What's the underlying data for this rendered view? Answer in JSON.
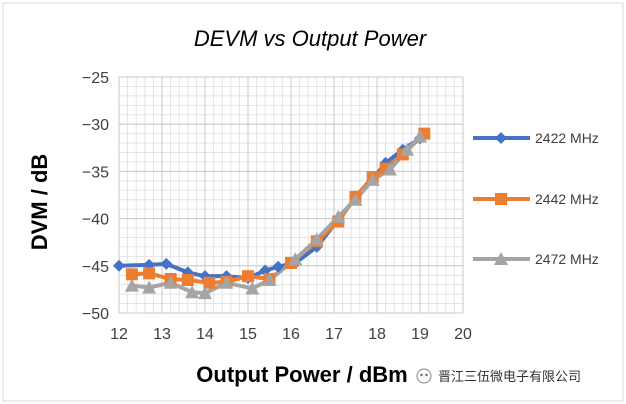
{
  "chart_data": {
    "type": "line",
    "title": "DEVM vs Output Power",
    "xlabel": "Output Power / dBm",
    "ylabel": "DVM / dB",
    "xlim": [
      12,
      20
    ],
    "ylim": [
      -50,
      -25
    ],
    "xticks": [
      12,
      13,
      14,
      15,
      16,
      17,
      18,
      19,
      20
    ],
    "yticks": [
      -25,
      -30,
      -35,
      -40,
      -45,
      -50
    ],
    "grid": true,
    "legend_position": "right",
    "series": [
      {
        "name": "2422 MHz",
        "color": "#4472C4",
        "marker": "diamond",
        "x": [
          12,
          12.7,
          13.1,
          13.6,
          14.0,
          14.5,
          15.0,
          15.4,
          15.7,
          16.1,
          16.6,
          17.1,
          17.5,
          17.9,
          18.2,
          18.6,
          19.0
        ],
        "y": [
          -45.0,
          -44.9,
          -44.8,
          -45.7,
          -46.1,
          -46.1,
          -46.3,
          -45.5,
          -45.1,
          -44.7,
          -43.0,
          -40.1,
          -37.8,
          -35.8,
          -34.1,
          -32.7,
          -31.5
        ]
      },
      {
        "name": "2442 MHz",
        "color": "#ED7D31",
        "marker": "square",
        "x": [
          12.3,
          12.7,
          13.2,
          13.6,
          14.1,
          14.5,
          15.0,
          15.5,
          16.0,
          16.6,
          17.1,
          17.5,
          17.9,
          18.2,
          18.6,
          19.1
        ],
        "y": [
          -45.9,
          -45.8,
          -46.4,
          -46.5,
          -46.8,
          -46.7,
          -46.1,
          -46.4,
          -44.7,
          -42.4,
          -40.3,
          -37.7,
          -35.6,
          -34.7,
          -33.2,
          -31.0
        ]
      },
      {
        "name": "2472 MHz",
        "color": "#A5A5A5",
        "marker": "triangle",
        "x": [
          12.3,
          12.7,
          13.2,
          13.7,
          14.0,
          14.5,
          15.1,
          15.5,
          16.1,
          16.6,
          17.1,
          17.5,
          17.9,
          18.3,
          18.7,
          19.0
        ],
        "y": [
          -47.1,
          -47.3,
          -46.8,
          -47.8,
          -47.9,
          -46.8,
          -47.4,
          -46.5,
          -44.3,
          -42.2,
          -39.8,
          -38.0,
          -35.9,
          -34.8,
          -32.7,
          -31.3
        ]
      }
    ]
  },
  "watermark": {
    "icon": "wechat-icon",
    "text": "晋江三伍微电子有限公司"
  }
}
